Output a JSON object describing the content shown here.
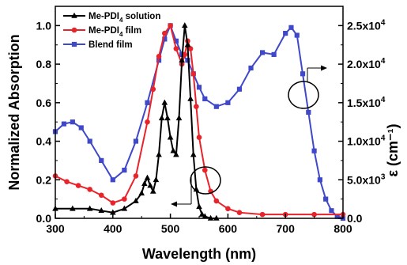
{
  "chart_data": {
    "type": "line",
    "xlabel": "Wavelength (nm)",
    "ylabel_left": "Normalized Absorption",
    "ylabel_right": "ε (cm⁻¹)",
    "xlim": [
      300,
      800
    ],
    "ylim_left": [
      0,
      1.1
    ],
    "ylim_right": [
      0,
      27500
    ],
    "x_ticks": [
      300,
      400,
      500,
      600,
      700,
      800
    ],
    "y_ticks_left": [
      "0.0",
      "0.2",
      "0.4",
      "0.6",
      "0.8",
      "1.0"
    ],
    "y_ticks_right": [
      {
        "value": 0,
        "label": "0.0"
      },
      {
        "value": 5000,
        "label": "5.0x10",
        "exp": "3"
      },
      {
        "value": 10000,
        "label": "1.0x10",
        "exp": "4"
      },
      {
        "value": 15000,
        "label": "1.5x10",
        "exp": "4"
      },
      {
        "value": 20000,
        "label": "2.0x10",
        "exp": "4"
      },
      {
        "value": 25000,
        "label": "2.5x10",
        "exp": "4"
      }
    ],
    "grid": false,
    "legend_position": "top-left",
    "series": [
      {
        "name": "Me-PDI4 solution",
        "legend_main": "Me-PDI",
        "legend_sub": "4",
        "legend_rest": " solution",
        "color": "#000000",
        "marker": "triangle",
        "x": [
          300,
          330,
          360,
          380,
          400,
          420,
          440,
          450,
          455,
          460,
          465,
          470,
          475,
          480,
          485,
          490,
          495,
          500,
          505,
          510,
          515,
          520,
          525,
          530,
          535,
          540,
          545,
          550,
          555,
          560,
          570,
          580
        ],
        "y": [
          0.05,
          0.05,
          0.05,
          0.04,
          0.03,
          0.05,
          0.09,
          0.13,
          0.18,
          0.21,
          0.17,
          0.14,
          0.2,
          0.33,
          0.52,
          0.6,
          0.52,
          0.42,
          0.35,
          0.33,
          0.52,
          0.82,
          1.0,
          0.9,
          0.62,
          0.33,
          0.15,
          0.06,
          0.02,
          0.01,
          0.0,
          0.0
        ]
      },
      {
        "name": "Me-PDI4 film",
        "legend_main": "Me-PDI",
        "legend_sub": "4",
        "legend_rest": " film",
        "color": "#e8232a",
        "marker": "circle",
        "x": [
          300,
          320,
          340,
          360,
          380,
          400,
          420,
          440,
          460,
          470,
          480,
          490,
          500,
          510,
          520,
          525,
          530,
          535,
          540,
          545,
          550,
          560,
          570,
          580,
          600,
          620,
          660,
          700,
          750,
          800
        ],
        "y": [
          0.22,
          0.19,
          0.17,
          0.15,
          0.12,
          0.08,
          0.1,
          0.22,
          0.5,
          0.67,
          0.84,
          0.96,
          1.0,
          0.88,
          0.8,
          0.85,
          0.92,
          0.88,
          0.75,
          0.58,
          0.42,
          0.25,
          0.14,
          0.09,
          0.05,
          0.03,
          0.02,
          0.02,
          0.02,
          0.02
        ]
      },
      {
        "name": "Blend film",
        "legend_main": "Blend film",
        "legend_sub": "",
        "legend_rest": "",
        "color": "#3f48c8",
        "marker": "square",
        "x": [
          300,
          315,
          330,
          345,
          360,
          380,
          400,
          420,
          440,
          460,
          480,
          490,
          500,
          510,
          520,
          530,
          540,
          550,
          560,
          580,
          600,
          620,
          640,
          660,
          680,
          700,
          710,
          720,
          730,
          740,
          750,
          760,
          770,
          780,
          790,
          800
        ],
        "y": [
          0.45,
          0.49,
          0.5,
          0.47,
          0.4,
          0.3,
          0.2,
          0.25,
          0.4,
          0.6,
          0.82,
          0.93,
          1.0,
          0.92,
          0.85,
          0.82,
          0.75,
          0.68,
          0.62,
          0.58,
          0.6,
          0.67,
          0.78,
          0.86,
          0.85,
          0.96,
          0.99,
          0.95,
          0.75,
          0.55,
          0.35,
          0.2,
          0.1,
          0.04,
          0.01,
          0.0
        ]
      }
    ]
  }
}
